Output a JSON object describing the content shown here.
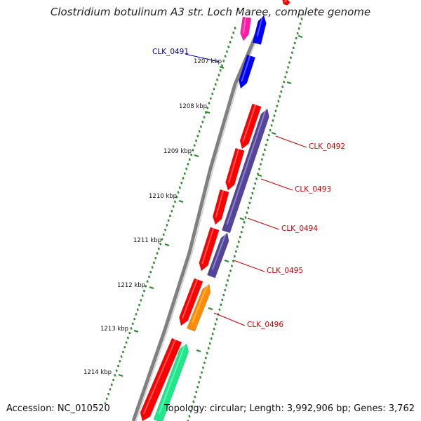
{
  "title": "Clostridium botulinum A3 str. Loch Maree, complete genome",
  "footer": {
    "accession": "Accession: NC_010520",
    "summary": "Topology: circular; Length: 3,992,906 bp; Genes: 3,762"
  },
  "colors": {
    "backbone": "#808080",
    "tick": "#2a8a2a",
    "red_gene": "#ff0000",
    "blue_gene": "#0000ff",
    "purple_gene": "#54449a",
    "orange_gene": "#ff8c00",
    "magenta_gene": "#ff1aa6",
    "green_gene": "#1de88a",
    "label_red": "#cc0000",
    "label_blue": "#0000aa"
  },
  "kbp_labels": [
    "1207 kbp",
    "1208 kbp",
    "1209 kbp",
    "1210 kbp",
    "1211 kbp",
    "1212 kbp",
    "1213 kbp",
    "1214 kbp"
  ],
  "gene_labels": [
    {
      "id": "CLK_0491",
      "color": "blue"
    },
    {
      "id": "CLK_0492",
      "color": "red"
    },
    {
      "id": "CLK_0493",
      "color": "red"
    },
    {
      "id": "CLK_0494",
      "color": "red"
    },
    {
      "id": "CLK_0495",
      "color": "red"
    },
    {
      "id": "CLK_0496",
      "color": "red"
    }
  ]
}
